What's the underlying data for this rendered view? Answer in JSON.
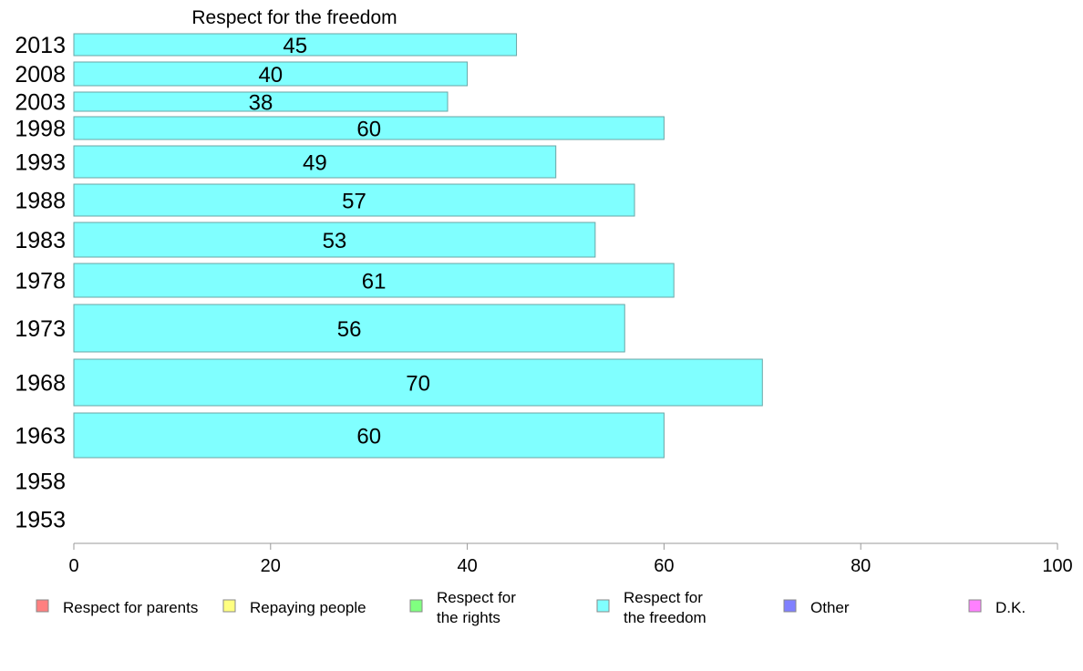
{
  "chart_data": {
    "type": "bar",
    "orientation": "horizontal",
    "title": "Respect for the freedom",
    "xlabel": "",
    "ylabel": "",
    "xlim": [
      0,
      100
    ],
    "x_ticks": [
      0,
      20,
      40,
      60,
      80,
      100
    ],
    "grid": false,
    "categories": [
      "2013",
      "2008",
      "2003",
      "1998",
      "1993",
      "1988",
      "1983",
      "1978",
      "1973",
      "1968",
      "1963",
      "1958",
      "1953"
    ],
    "series": [
      {
        "name": "Respect for the freedom",
        "color": "#80ffff",
        "values": [
          45,
          40,
          38,
          60,
          49,
          57,
          53,
          61,
          56,
          70,
          60,
          null,
          null
        ],
        "labels": [
          "45",
          "40",
          "38",
          "60",
          "49",
          "57",
          "53",
          "61",
          "56",
          "70",
          "60",
          "",
          ""
        ]
      }
    ],
    "legend": {
      "position": "bottom",
      "items": [
        {
          "lines": [
            "Respect for parents"
          ],
          "color": "#ff8080"
        },
        {
          "lines": [
            "Repaying people"
          ],
          "color": "#ffff80"
        },
        {
          "lines": [
            "Respect for",
            "the rights"
          ],
          "color": "#80ff80"
        },
        {
          "lines": [
            "Respect for",
            "the freedom"
          ],
          "color": "#80ffff"
        },
        {
          "lines": [
            "Other"
          ],
          "color": "#8080ff"
        },
        {
          "lines": [
            "D.K."
          ],
          "color": "#ff80ff"
        }
      ]
    }
  }
}
